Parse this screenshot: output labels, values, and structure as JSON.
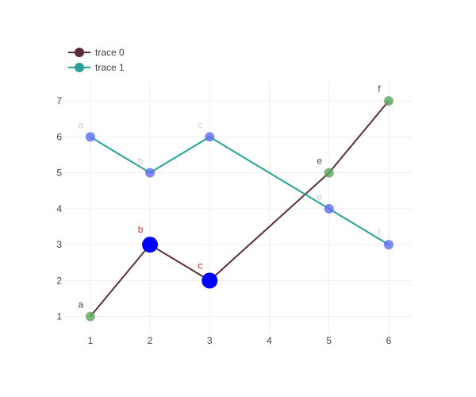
{
  "chart_data": {
    "type": "line",
    "xlim": [
      0.55,
      6.4
    ],
    "ylim": [
      0.55,
      7.6
    ],
    "x_ticks": [
      1,
      2,
      3,
      4,
      5,
      6
    ],
    "y_ticks": [
      1,
      2,
      3,
      4,
      5,
      6,
      7
    ],
    "grid": true,
    "legend_position": "top-left",
    "series": [
      {
        "name": "trace 0",
        "line_color": "#5b2f37",
        "legend_marker_color": "#5b2f37",
        "points": [
          {
            "x": 1,
            "y": 1,
            "label": "a",
            "label_color": "#444444",
            "marker_color": "#5aa55a",
            "marker_opacity": 0.8,
            "marker_size": "small"
          },
          {
            "x": 2,
            "y": 3,
            "label": "b",
            "label_color": "#d62728",
            "marker_color": "#0000ff",
            "marker_opacity": 1.0,
            "marker_size": "large"
          },
          {
            "x": 3,
            "y": 2,
            "label": "c",
            "label_color": "#d62728",
            "marker_color": "#0000ff",
            "marker_opacity": 1.0,
            "marker_size": "large"
          },
          {
            "x": 5,
            "y": 5,
            "label": "e",
            "label_color": "#444444",
            "marker_color": "#5aa55a",
            "marker_opacity": 0.8,
            "marker_size": "small"
          },
          {
            "x": 6,
            "y": 7,
            "label": "f",
            "label_color": "#444444",
            "marker_color": "#5aa55a",
            "marker_opacity": 0.8,
            "marker_size": "small"
          }
        ]
      },
      {
        "name": "trace 1",
        "line_color": "#2aa198",
        "legend_marker_color": "#2aa198",
        "points": [
          {
            "x": 1,
            "y": 6,
            "label": "a",
            "label_color": "#cccccc",
            "marker_color": "#5a6cf0",
            "marker_opacity": 0.8,
            "marker_size": "small"
          },
          {
            "x": 2,
            "y": 5,
            "label": "b",
            "label_color": "#cccccc",
            "marker_color": "#5a6cf0",
            "marker_opacity": 0.8,
            "marker_size": "small"
          },
          {
            "x": 3,
            "y": 6,
            "label": "c",
            "label_color": "#cccccc",
            "marker_color": "#5a6cf0",
            "marker_opacity": 0.8,
            "marker_size": "small"
          },
          {
            "x": 5,
            "y": 4,
            "label": "e",
            "label_color": "#cccccc",
            "marker_color": "#5a6cf0",
            "marker_opacity": 0.8,
            "marker_size": "small"
          },
          {
            "x": 6,
            "y": 3,
            "label": "f",
            "label_color": "#cccccc",
            "marker_color": "#5a6cf0",
            "marker_opacity": 0.8,
            "marker_size": "small"
          }
        ]
      }
    ]
  }
}
